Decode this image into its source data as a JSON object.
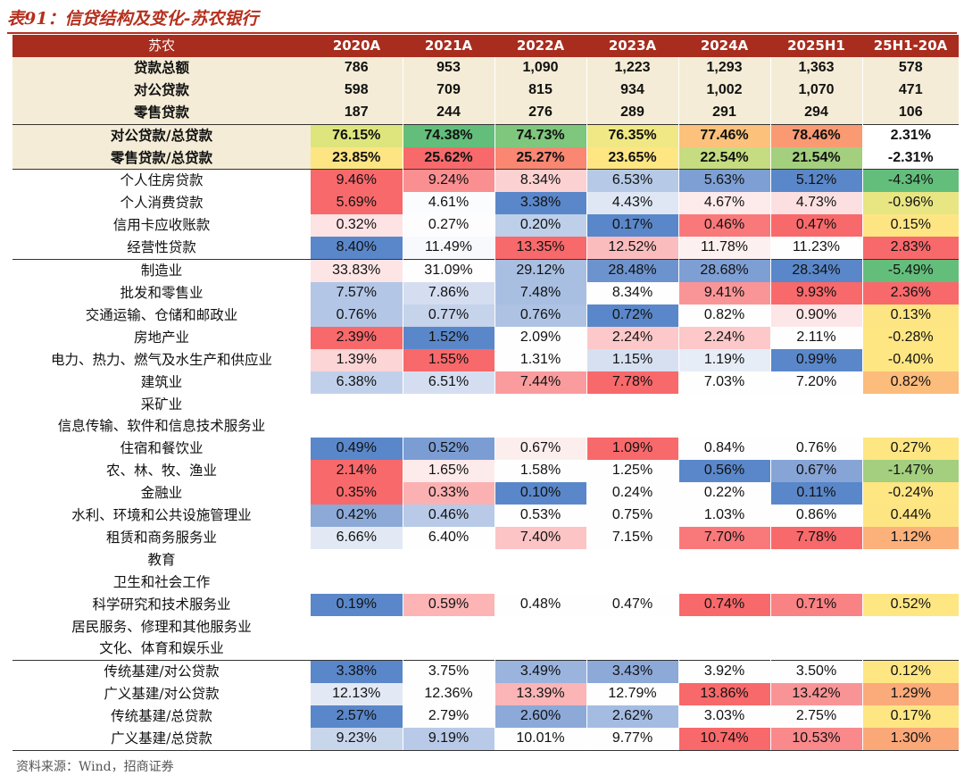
{
  "title": "表91：信贷结构及变化-苏农银行",
  "source": "资料来源：Wind，招商证券",
  "header": [
    "苏农",
    "2020A",
    "2021A",
    "2022A",
    "2023A",
    "2024A",
    "2025H1",
    "25H1-20A"
  ],
  "rows": [
    {
      "label": "贷款总额",
      "values": [
        "786",
        "953",
        "1,090",
        "1,223",
        "1,293",
        "1,363",
        "578"
      ],
      "colors": [
        "",
        "",
        "",
        "",
        "",
        "",
        ""
      ],
      "cls": "sum"
    },
    {
      "label": "对公贷款",
      "values": [
        "598",
        "709",
        "815",
        "934",
        "1,002",
        "1,070",
        "471"
      ],
      "colors": [
        "",
        "",
        "",
        "",
        "",
        "",
        ""
      ],
      "cls": "sum"
    },
    {
      "label": "零售贷款",
      "values": [
        "187",
        "244",
        "276",
        "289",
        "291",
        "294",
        "106"
      ],
      "colors": [
        "",
        "",
        "",
        "",
        "",
        "",
        ""
      ],
      "cls": "sum"
    },
    {
      "label": "对公贷款/总贷款",
      "values": [
        "76.15%",
        "74.38%",
        "74.73%",
        "76.35%",
        "77.46%",
        "78.46%",
        "2.31%"
      ],
      "colors": [
        "#dde57c",
        "#63be7b",
        "#7fc77d",
        "#f0e884",
        "#fcc17b",
        "#fa9a73",
        "#ffffff"
      ],
      "cls": "ratio sep"
    },
    {
      "label": "零售贷款/总贷款",
      "values": [
        "23.85%",
        "25.62%",
        "25.27%",
        "23.65%",
        "22.54%",
        "21.54%",
        "-2.31%"
      ],
      "colors": [
        "#fde583",
        "#f8696b",
        "#f98771",
        "#fee683",
        "#c5dc80",
        "#a3cf7e",
        "#ffffff"
      ],
      "cls": "ratio"
    },
    {
      "label": "个人住房贷款",
      "values": [
        "9.46%",
        "9.24%",
        "8.34%",
        "6.53%",
        "5.63%",
        "5.12%",
        "-4.34%"
      ],
      "colors": [
        "#f8696b",
        "#fa8f91",
        "#fcd1d2",
        "#b6c9e6",
        "#7d9fd4",
        "#5a87c9",
        "#63be7b"
      ],
      "cls": "sep"
    },
    {
      "label": "个人消费贷款",
      "values": [
        "5.69%",
        "4.61%",
        "3.38%",
        "4.43%",
        "4.67%",
        "4.73%",
        "-0.96%"
      ],
      "colors": [
        "#f8696b",
        "#fbfcfe",
        "#5a87c9",
        "#dfe7f4",
        "#fdeaea",
        "#fce0e1",
        "#e8e583"
      ],
      "cls": ""
    },
    {
      "label": "信用卡应收账款",
      "values": [
        "0.32%",
        "0.27%",
        "0.20%",
        "0.17%",
        "0.46%",
        "0.47%",
        "0.15%"
      ],
      "colors": [
        "#fde3e4",
        "#fdfdfe",
        "#bdcfe9",
        "#5a87c9",
        "#f9797b",
        "#f8696b",
        "#fee583"
      ],
      "cls": ""
    },
    {
      "label": "经营性贷款",
      "values": [
        "8.40%",
        "11.49%",
        "13.35%",
        "12.52%",
        "11.78%",
        "11.23%",
        "2.83%"
      ],
      "colors": [
        "#5a87c9",
        "#f7f9fc",
        "#f8696b",
        "#fbbcbd",
        "#fdf0f0",
        "#fefefe",
        "#f8696b"
      ],
      "cls": ""
    },
    {
      "label": "制造业",
      "values": [
        "33.83%",
        "31.09%",
        "29.12%",
        "28.48%",
        "28.68%",
        "28.34%",
        "-5.49%"
      ],
      "colors": [
        "#fde5e6",
        "#fefefe",
        "#a8bfe2",
        "#6d93ce",
        "#7e9fd4",
        "#5a87c9",
        "#63be7b"
      ],
      "cls": "sep"
    },
    {
      "label": "批发和零售业",
      "values": [
        "7.57%",
        "7.86%",
        "7.48%",
        "8.34%",
        "9.41%",
        "9.93%",
        "2.36%"
      ],
      "colors": [
        "#b3c6e6",
        "#d5def1",
        "#a8bfe2",
        "#fefefe",
        "#fa9597",
        "#f8696b",
        "#f8696b"
      ],
      "cls": ""
    },
    {
      "label": "交通运输、仓储和邮政业",
      "values": [
        "0.76%",
        "0.77%",
        "0.76%",
        "0.72%",
        "0.82%",
        "0.90%",
        "0.13%"
      ],
      "colors": [
        "#b3c6e6",
        "#c5d3eb",
        "#aec3e4",
        "#5a87c9",
        "#fefefe",
        "#fde6e7",
        "#fee583"
      ],
      "cls": ""
    },
    {
      "label": "房地产业",
      "values": [
        "2.39%",
        "1.52%",
        "2.09%",
        "2.24%",
        "2.24%",
        "2.11%",
        "-0.28%"
      ],
      "colors": [
        "#f8696b",
        "#5a87c9",
        "#fefefe",
        "#fcc8c9",
        "#fcc8c9",
        "#fefefe",
        "#fee683"
      ],
      "cls": ""
    },
    {
      "label": "电力、热力、燃气及水生产和供应业",
      "values": [
        "1.39%",
        "1.55%",
        "1.31%",
        "1.15%",
        "1.19%",
        "0.99%",
        "-0.40%"
      ],
      "colors": [
        "#fcd5d6",
        "#f8696b",
        "#fefefe",
        "#d6e0f1",
        "#e7edf7",
        "#5a87c9",
        "#fee683"
      ],
      "cls": ""
    },
    {
      "label": "建筑业",
      "values": [
        "6.38%",
        "6.51%",
        "7.44%",
        "7.78%",
        "7.03%",
        "7.20%",
        "0.82%"
      ],
      "colors": [
        "#c1d0ea",
        "#d5def1",
        "#fa9c9e",
        "#f8696b",
        "#fefefe",
        "#fefefe",
        "#fcbc7b"
      ],
      "cls": ""
    },
    {
      "label": "采矿业",
      "values": [
        "",
        "",
        "",
        "",
        "",
        "",
        ""
      ],
      "colors": [
        "",
        "",
        "",
        "",
        "",
        "",
        ""
      ],
      "cls": ""
    },
    {
      "label": "信息传输、软件和信息技术服务业",
      "values": [
        "",
        "",
        "",
        "",
        "",
        "",
        ""
      ],
      "colors": [
        "",
        "",
        "",
        "",
        "",
        "",
        ""
      ],
      "cls": ""
    },
    {
      "label": "住宿和餐饮业",
      "values": [
        "0.49%",
        "0.52%",
        "0.67%",
        "1.09%",
        "0.84%",
        "0.76%",
        "0.27%"
      ],
      "colors": [
        "#5a87c9",
        "#7b9dd3",
        "#fdeeee",
        "#f8696b",
        "#fefefe",
        "#fefefe",
        "#fee683"
      ],
      "cls": ""
    },
    {
      "label": "农、林、牧、渔业",
      "values": [
        "2.14%",
        "1.65%",
        "1.58%",
        "1.25%",
        "0.56%",
        "0.67%",
        "-1.47%"
      ],
      "colors": [
        "#f8696b",
        "#fdeaea",
        "#fefefe",
        "#fefefe",
        "#5a87c9",
        "#86a5d6",
        "#a3cf7e"
      ],
      "cls": ""
    },
    {
      "label": "金融业",
      "values": [
        "0.35%",
        "0.33%",
        "0.10%",
        "0.24%",
        "0.22%",
        "0.11%",
        "-0.24%"
      ],
      "colors": [
        "#f8696b",
        "#fbb1b2",
        "#5a87c9",
        "#fefefe",
        "#fefefe",
        "#5a87c9",
        "#fee683"
      ],
      "cls": ""
    },
    {
      "label": "水利、环境和公共设施管理业",
      "values": [
        "0.42%",
        "0.46%",
        "0.53%",
        "0.75%",
        "1.03%",
        "0.86%",
        "0.44%"
      ],
      "colors": [
        "#8ca9d8",
        "#b8cae7",
        "#fefefe",
        "#fefefe",
        "#fefefe",
        "#fefefe",
        "#fee583"
      ],
      "cls": ""
    },
    {
      "label": "租赁和商务服务业",
      "values": [
        "6.66%",
        "6.40%",
        "7.40%",
        "7.15%",
        "7.70%",
        "7.78%",
        "1.12%"
      ],
      "colors": [
        "#e2e9f5",
        "#fefefe",
        "#fcc4c5",
        "#fefefe",
        "#f9797b",
        "#f8696b",
        "#fcb17a"
      ],
      "cls": ""
    },
    {
      "label": "教育",
      "values": [
        "",
        "",
        "",
        "",
        "",
        "",
        ""
      ],
      "colors": [
        "",
        "",
        "",
        "",
        "",
        "",
        ""
      ],
      "cls": ""
    },
    {
      "label": "卫生和社会工作",
      "values": [
        "",
        "",
        "",
        "",
        "",
        "",
        ""
      ],
      "colors": [
        "",
        "",
        "",
        "",
        "",
        "",
        ""
      ],
      "cls": ""
    },
    {
      "label": "科学研究和技术服务业",
      "values": [
        "0.19%",
        "0.59%",
        "0.48%",
        "0.47%",
        "0.74%",
        "0.71%",
        "0.52%"
      ],
      "colors": [
        "#5a87c9",
        "#fcb4b5",
        "#fefefe",
        "#fefefe",
        "#f8696b",
        "#f98284",
        "#fee683"
      ],
      "cls": ""
    },
    {
      "label": "居民服务、修理和其他服务业",
      "values": [
        "",
        "",
        "",
        "",
        "",
        "",
        ""
      ],
      "colors": [
        "",
        "",
        "",
        "",
        "",
        "",
        ""
      ],
      "cls": ""
    },
    {
      "label": "文化、体育和娱乐业",
      "values": [
        "",
        "",
        "",
        "",
        "",
        "",
        ""
      ],
      "colors": [
        "",
        "",
        "",
        "",
        "",
        "",
        ""
      ],
      "cls": ""
    },
    {
      "label": "传统基建/对公贷款",
      "values": [
        "3.38%",
        "3.75%",
        "3.49%",
        "3.43%",
        "3.92%",
        "3.50%",
        "0.12%"
      ],
      "colors": [
        "#5a87c9",
        "#fefefe",
        "#9ab4dd",
        "#8ca9d8",
        "#fefefe",
        "#fefefe",
        "#fee683"
      ],
      "cls": "sep"
    },
    {
      "label": "广义基建/对公贷款",
      "values": [
        "12.13%",
        "12.36%",
        "13.39%",
        "12.79%",
        "13.86%",
        "13.42%",
        "1.29%"
      ],
      "colors": [
        "#e2e9f5",
        "#fefefe",
        "#fbb5b6",
        "#fefefe",
        "#f8696b",
        "#f99496",
        "#fbaa79"
      ],
      "cls": ""
    },
    {
      "label": "传统基建/总贷款",
      "values": [
        "2.57%",
        "2.79%",
        "2.60%",
        "2.62%",
        "3.03%",
        "2.75%",
        "0.17%"
      ],
      "colors": [
        "#5a87c9",
        "#fefefe",
        "#8ca9d8",
        "#a4bce1",
        "#fefefe",
        "#fefefe",
        "#fee683"
      ],
      "cls": ""
    },
    {
      "label": "广义基建/总贷款",
      "values": [
        "9.23%",
        "9.19%",
        "10.01%",
        "9.77%",
        "10.74%",
        "10.53%",
        "1.30%"
      ],
      "colors": [
        "#c8d6ec",
        "#b8cae7",
        "#fefefe",
        "#fefefe",
        "#f8696b",
        "#f9898b",
        "#fba879"
      ],
      "cls": "last"
    }
  ]
}
